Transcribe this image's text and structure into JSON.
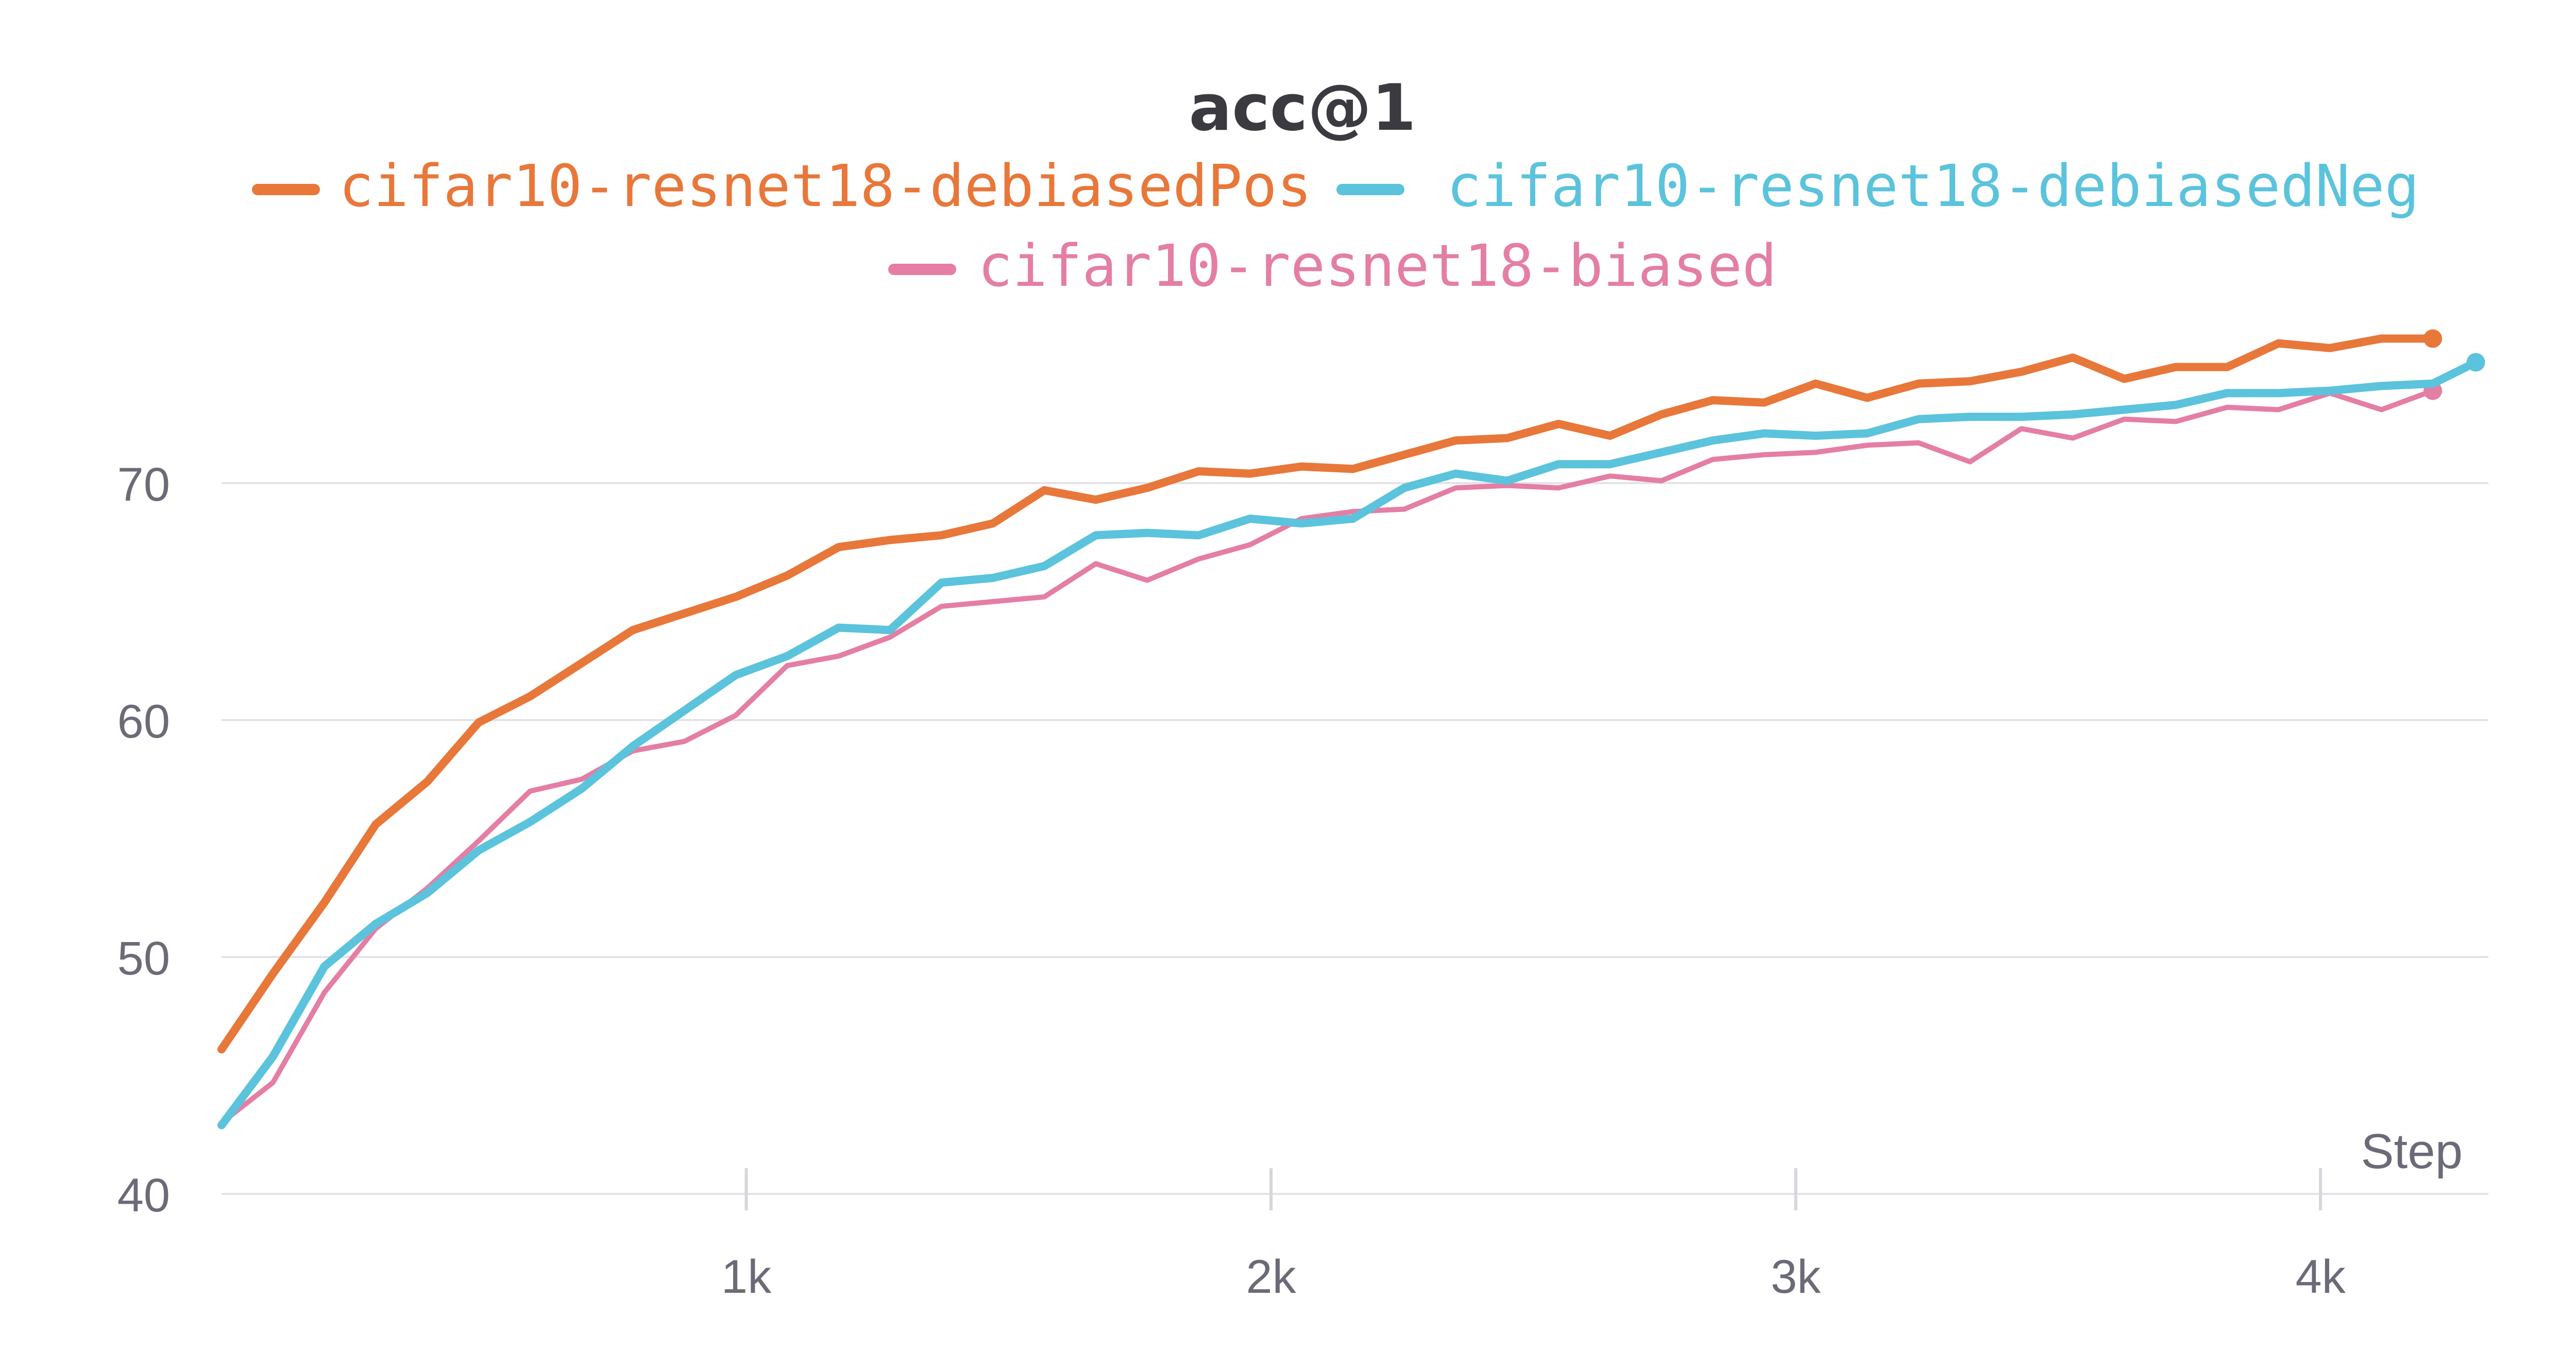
{
  "chart_data": {
    "type": "line",
    "title": "acc@1",
    "xlabel": "Step",
    "ylabel": "",
    "xlim": [
      0,
      4320
    ],
    "ylim": [
      40,
      78
    ],
    "yticks": [
      40,
      50,
      60,
      70
    ],
    "ytick_labels": [
      "40",
      "50",
      "60",
      "70"
    ],
    "xticks": [
      1000,
      2000,
      3000,
      4000
    ],
    "xtick_labels": [
      "1k",
      "2k",
      "3k",
      "4k"
    ],
    "grid": "horizontal",
    "legend_position": "top-center",
    "series": [
      {
        "name": "cifar10-resnet18-debiasedPos",
        "color": "#e8773a",
        "x": [
          0,
          98,
          196,
          294,
          392,
          490,
          588,
          686,
          784,
          882,
          980,
          1078,
          1176,
          1274,
          1372,
          1470,
          1568,
          1666,
          1764,
          1862,
          1960,
          2058,
          2156,
          2254,
          2352,
          2450,
          2548,
          2646,
          2744,
          2842,
          2940,
          3038,
          3136,
          3234,
          3332,
          3430,
          3528,
          3626,
          3724,
          3822,
          3920,
          4018,
          4116,
          4214
        ],
        "values": [
          46.1,
          49.3,
          52.3,
          55.6,
          57.4,
          59.9,
          61.0,
          62.4,
          63.8,
          64.5,
          65.2,
          66.1,
          67.3,
          67.6,
          67.8,
          68.3,
          69.7,
          69.3,
          69.8,
          70.5,
          70.4,
          70.7,
          70.6,
          71.2,
          71.8,
          71.9,
          72.5,
          72.0,
          72.9,
          73.5,
          73.4,
          74.2,
          73.6,
          74.2,
          74.3,
          74.7,
          75.3,
          74.4,
          74.9,
          74.9,
          75.4,
          75.2,
          76.0,
          75.6
        ],
        "x_tail": [
          3920,
          4018,
          4116,
          4214
        ],
        "values_tail": [
          75.9,
          75.7,
          76.1,
          76.1
        ]
      },
      {
        "name": "cifar10-resnet18-debiasedNeg",
        "color": "#5bc3dc",
        "x": [
          0,
          98,
          196,
          294,
          392,
          490,
          588,
          686,
          784,
          882,
          980,
          1078,
          1176,
          1274,
          1372,
          1470,
          1568,
          1666,
          1764,
          1862,
          1960,
          2058,
          2156,
          2254,
          2352,
          2450,
          2548,
          2646,
          2744,
          2842,
          2940,
          3038,
          3136,
          3234,
          3332,
          3430,
          3528,
          3626,
          3724,
          3822,
          3920,
          4018,
          4116,
          4214,
          4296
        ],
        "values": [
          42.9,
          45.8,
          49.6,
          51.4,
          52.7,
          54.5,
          55.7,
          57.1,
          58.9,
          60.4,
          61.9,
          62.7,
          63.9,
          63.8,
          65.8,
          66.0,
          66.5,
          67.8,
          67.9,
          67.8,
          68.5,
          68.3,
          68.5,
          69.8,
          70.4,
          70.1,
          70.8,
          70.8,
          71.3,
          71.8,
          72.1,
          72.0,
          72.1,
          72.7,
          72.8,
          72.8,
          72.9,
          73.1,
          73.3,
          73.8,
          73.8,
          73.9,
          74.1,
          74.2,
          75.1
        ]
      },
      {
        "name": "cifar10-resnet18-biased",
        "color": "#e47ea4",
        "x": [
          0,
          98,
          196,
          294,
          392,
          490,
          588,
          686,
          784,
          882,
          980,
          1078,
          1176,
          1274,
          1372,
          1470,
          1568,
          1666,
          1764,
          1862,
          1960,
          2058,
          2156,
          2254,
          2352,
          2450,
          2548,
          2646,
          2744,
          2842,
          2940,
          3038,
          3136,
          3234,
          3332,
          3430,
          3528,
          3626,
          3724,
          3822,
          3920,
          4018,
          4116,
          4214
        ],
        "values": [
          43.0,
          44.7,
          48.5,
          51.2,
          52.9,
          54.9,
          57.0,
          57.5,
          58.7,
          59.1,
          60.2,
          62.3,
          62.7,
          63.5,
          64.8,
          65.0,
          65.2,
          66.6,
          65.9,
          66.8,
          67.4,
          68.5,
          68.8,
          68.9,
          69.8,
          69.9,
          69.8,
          70.3,
          70.1,
          71.0,
          71.2,
          71.3,
          71.6,
          71.7,
          70.9,
          72.3,
          71.9,
          72.7,
          72.6,
          73.2,
          73.1,
          73.8,
          73.1,
          73.9
        ]
      }
    ]
  }
}
